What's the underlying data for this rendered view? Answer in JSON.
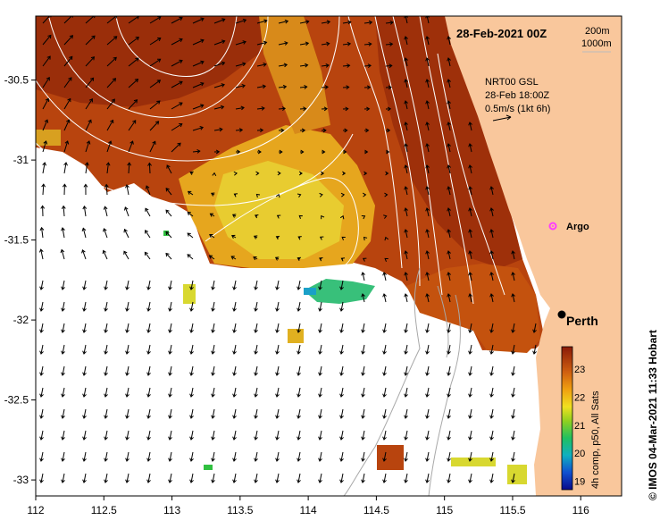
{
  "map": {
    "date_title": "28-Feb-2021 00Z",
    "contour_legend": [
      "200m",
      "1000m"
    ],
    "current_legend": [
      "NRT00 GSL",
      "28-Feb 18:00Z",
      "0.5m/s (1kt 6h)"
    ],
    "argo_label": "Argo",
    "city_label": "Perth",
    "credit": "© IMOS 04-Mar-2021 11:33 Hobart",
    "colorbar_label": "4h comp, p50, All Sats",
    "colorbar_ticks": [
      "23",
      "22",
      "21",
      "20",
      "19"
    ],
    "colorbar_range": [
      18.7,
      23.8
    ],
    "x_ticks": [
      "112",
      "112.5",
      "113",
      "113.5",
      "114",
      "114.5",
      "115",
      "115.5",
      "116"
    ],
    "y_ticks": [
      "-30.5",
      "-31",
      "-31.5",
      "-32",
      "-32.5",
      "-33"
    ],
    "lon_range": [
      112.0,
      116.3
    ],
    "lat_range": [
      -33.1,
      -30.1
    ],
    "colors": {
      "land": "#f9c79c",
      "ocean_missing": "#ffffff",
      "argo": "#ff3dff",
      "contour": "#ffffff",
      "bathy_coast": "#a0a0a0"
    }
  }
}
